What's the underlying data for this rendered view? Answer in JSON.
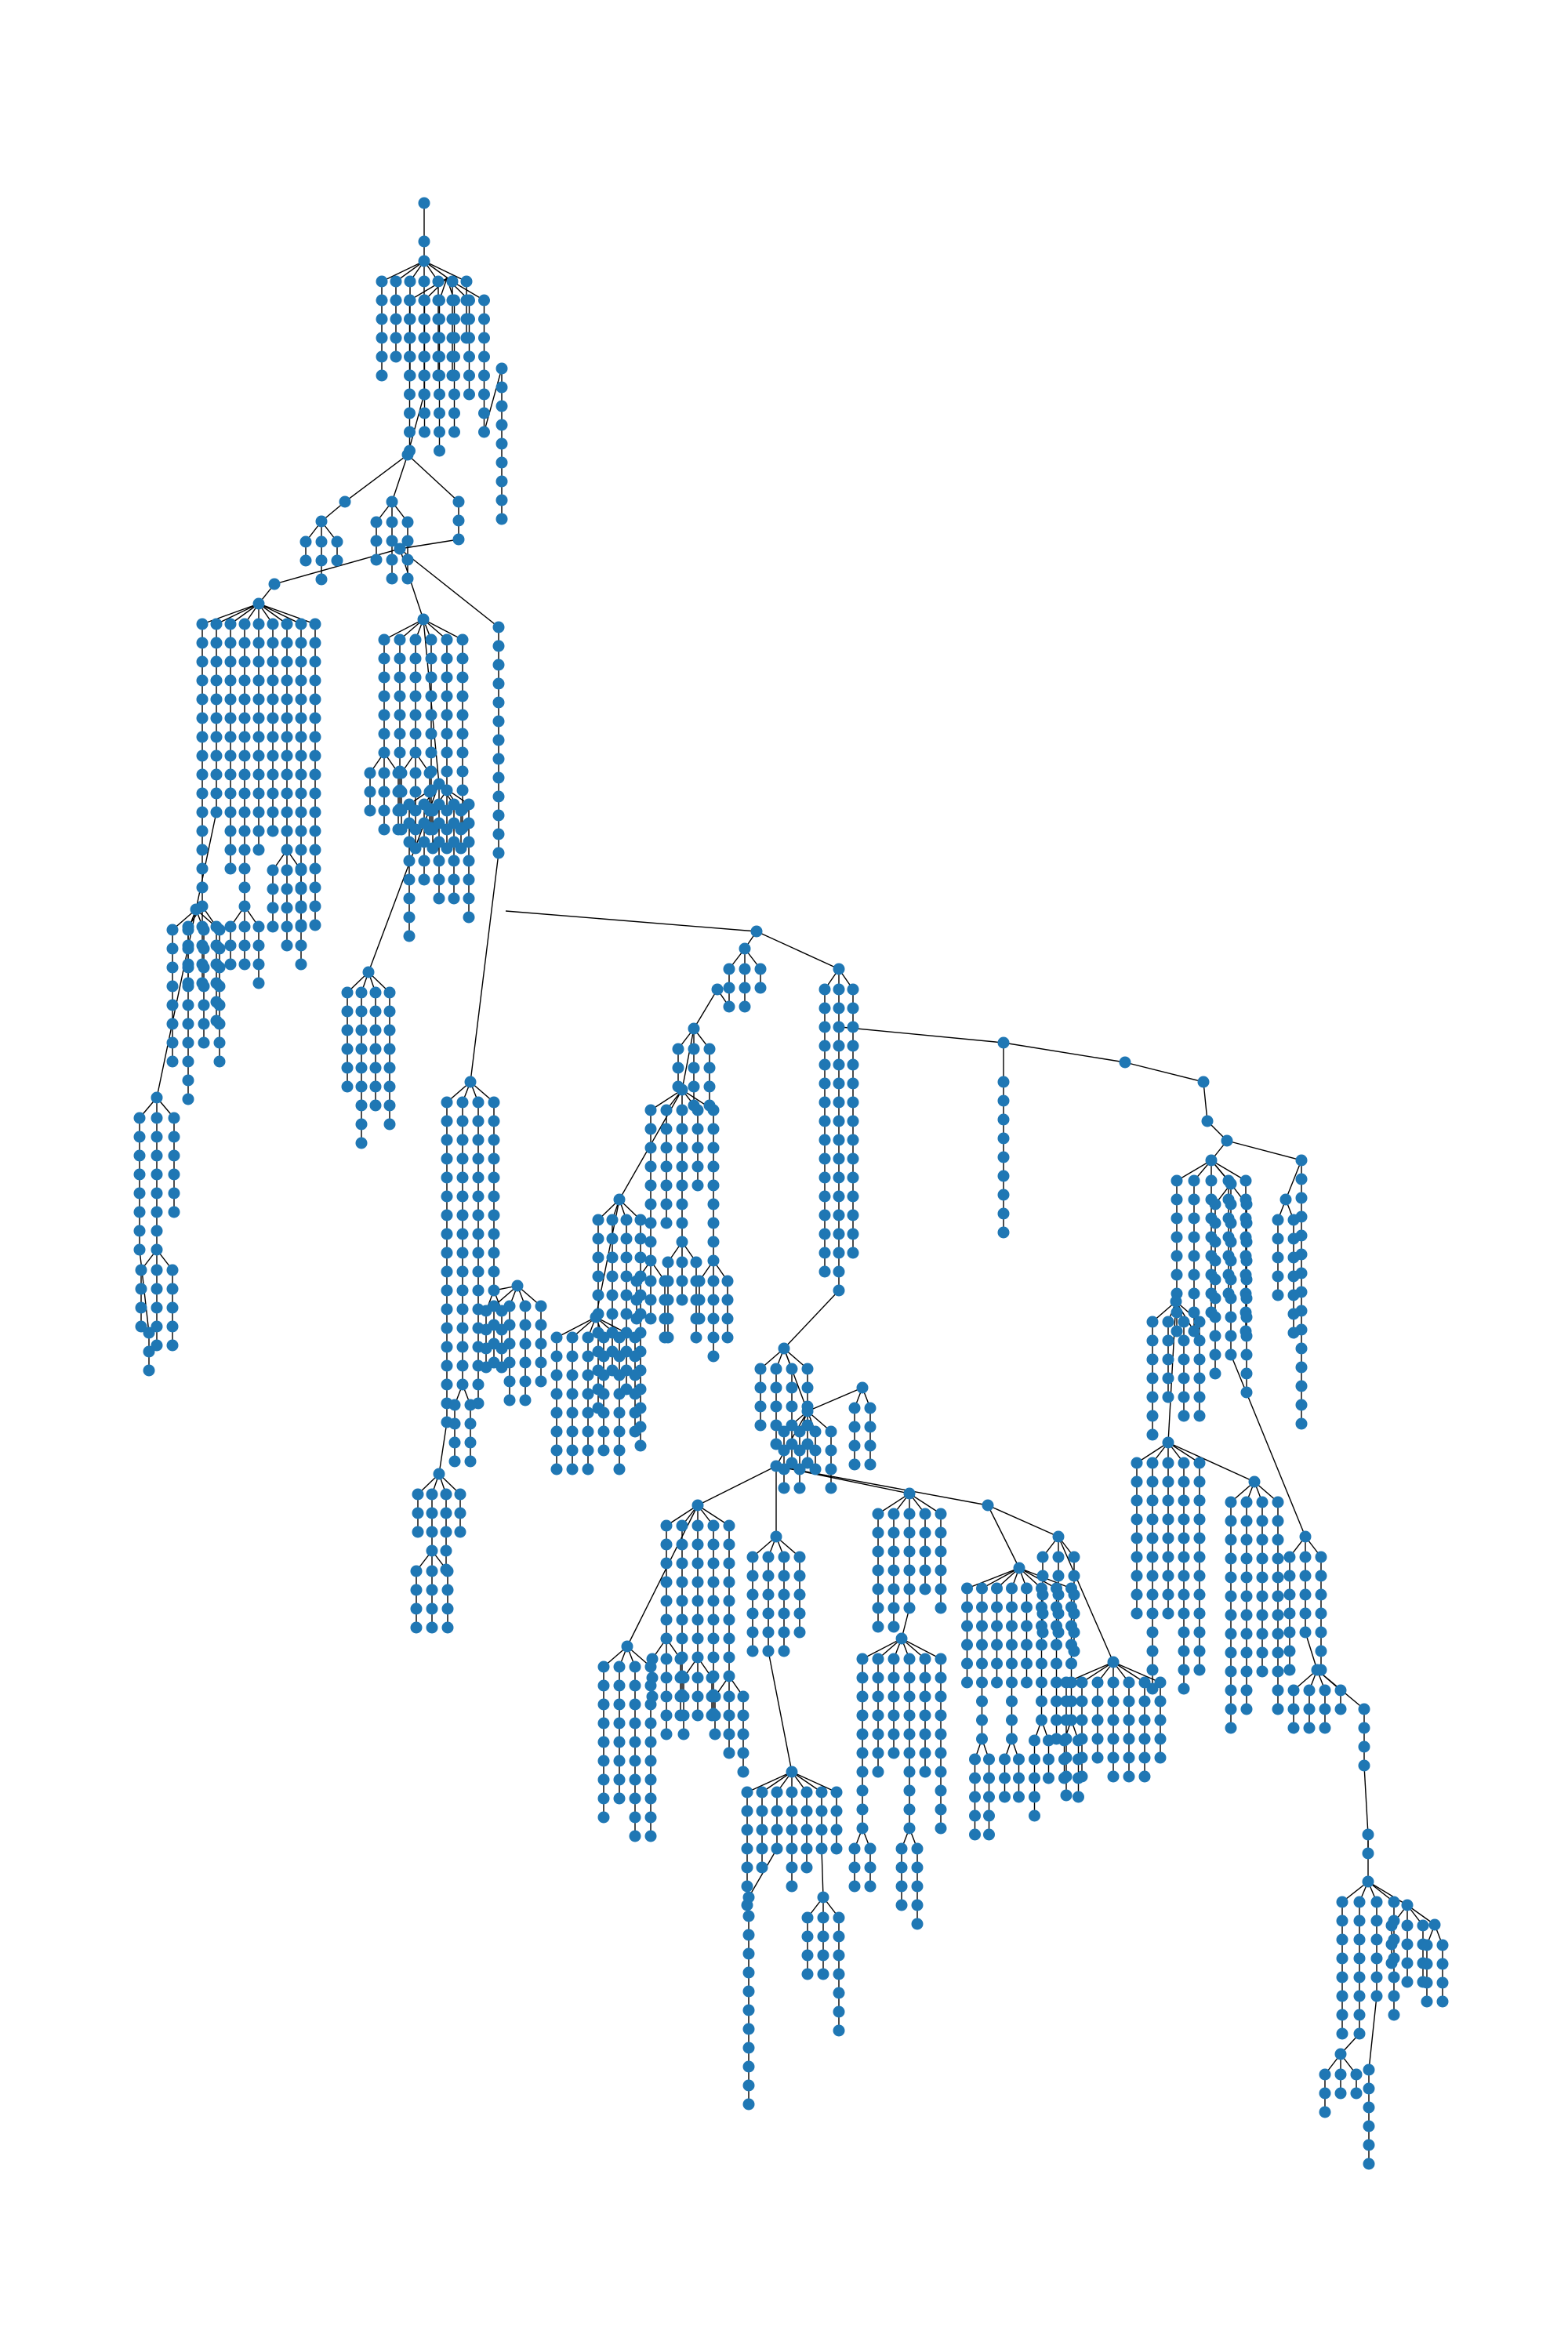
{
  "diagram": {
    "type": "tree",
    "node_color": "#1f77b4",
    "edge_color": "#000000",
    "background": "#ffffff",
    "labels_shown": false,
    "directed": true
  }
}
